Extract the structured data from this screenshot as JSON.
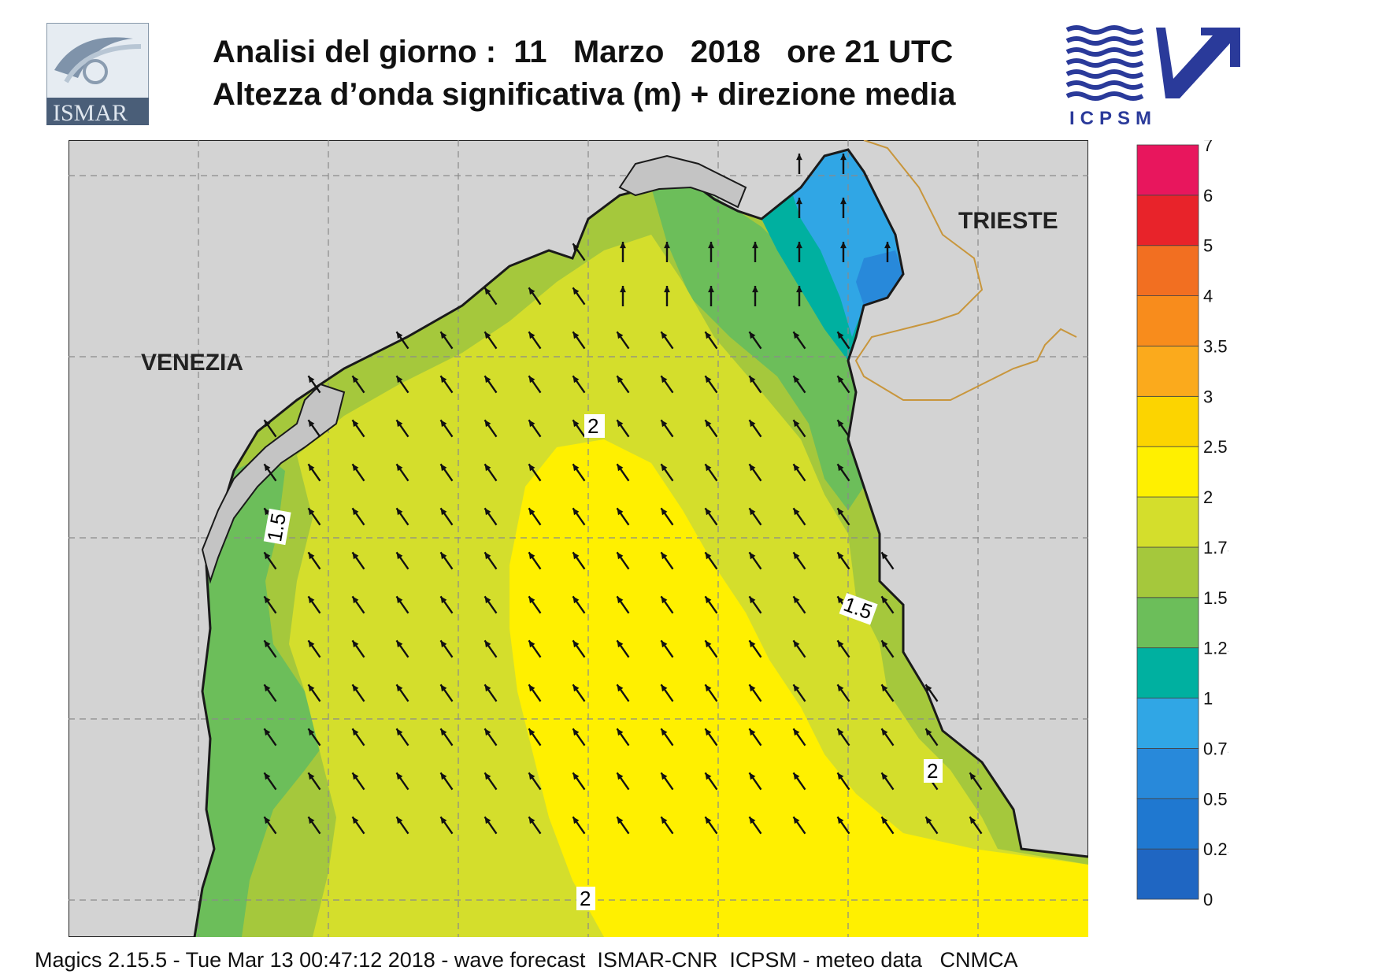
{
  "header": {
    "title_line1": "Analisi del giorno :  11   Marzo   2018   ore 21 UTC",
    "title_line2": "Altezza d’onda significativa (m) + direzione media"
  },
  "logos": {
    "left": "ISMAR",
    "right": "ICPSM"
  },
  "map": {
    "places": [
      {
        "name": "VENEZIA"
      },
      {
        "name": "TRIESTE"
      }
    ],
    "contour_labels": [
      "2",
      "1.5",
      "1.5",
      "2",
      "2"
    ],
    "colors": {
      "land": "#d3d3d3",
      "coast": "#1a1a1a",
      "border": "#c8963c",
      "grid": "#8a8a8a"
    }
  },
  "legend": {
    "ticks": [
      "0",
      "0.25",
      "0.5",
      "0.75",
      "1",
      "1.25",
      "1.5",
      "1.75",
      "2",
      "2.5",
      "3",
      "3.5",
      "4",
      "5",
      "6",
      "7"
    ],
    "colors": [
      "#1f66c2",
      "#1f78d0",
      "#2889da",
      "#30a6e5",
      "#00b0a0",
      "#6cbe5a",
      "#a5c83c",
      "#d4de2c",
      "#fff000",
      "#fcd400",
      "#fbaa1c",
      "#f88c1c",
      "#f26f21",
      "#e8232a",
      "#e8165d"
    ]
  },
  "footer": {
    "text": "Magics 2.15.5 - Tue Mar 13 00:47:12 2018 - wave forecast  ISMAR-CNR  ICPSM - meteo data   CNMCA"
  }
}
